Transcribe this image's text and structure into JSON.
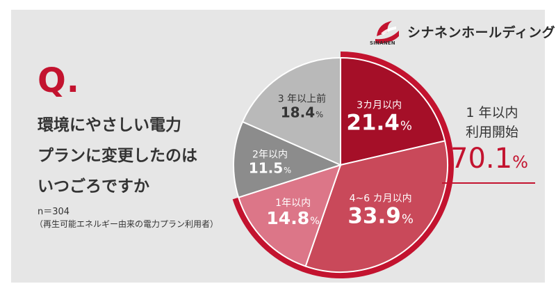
{
  "brand": {
    "name": "シナネンホールディングス",
    "sub": "SINANEN",
    "colors": {
      "primary": "#c3132f",
      "dark_red": "#a50f28"
    }
  },
  "question": {
    "marker": "Q.",
    "lines": [
      "環境にやさしい電力",
      "プランに変更したのは",
      "いつごろですか"
    ]
  },
  "sample": {
    "n": "n＝304",
    "note": "（再生可能エネルギー由来の電力プラン利用者）"
  },
  "callout": {
    "line1": "1 年以内",
    "line2": "利用開始",
    "value": "70.1",
    "unit": "%"
  },
  "chart_data": {
    "type": "pie",
    "unit": "%",
    "start_angle_deg": 0,
    "direction": "clockwise",
    "slices": [
      {
        "label": "3カ月以内",
        "value": 21.4,
        "value_text": "21.4",
        "color": "#a50f28"
      },
      {
        "label": "4~6 カ月以内",
        "value": 33.9,
        "value_text": "33.9",
        "color": "#c9495a"
      },
      {
        "label": "1年以内",
        "value": 14.8,
        "value_text": "14.8",
        "color": "#dc7688"
      },
      {
        "label": "2年以内",
        "value": 11.5,
        "value_text": "11.5",
        "color": "#8c8c8c"
      },
      {
        "label": "3 年以上前",
        "value": 18.4,
        "value_text": "18.4",
        "color": "#b9b9b9"
      }
    ],
    "highlight": {
      "label": "1 年以内 利用開始",
      "value": 70.1,
      "color": "#c3132f"
    }
  }
}
